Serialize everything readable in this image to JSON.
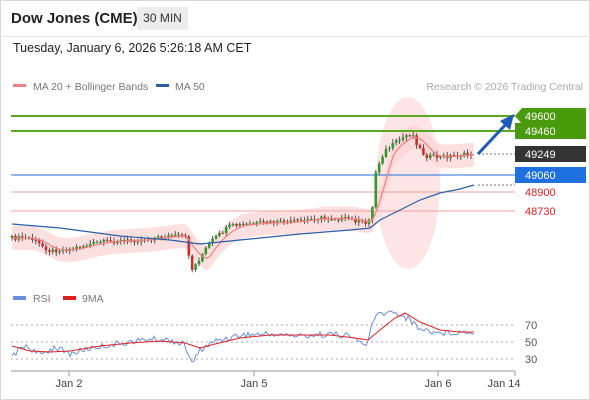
{
  "header": {
    "title": "Dow Jones (CME)",
    "timeframe": "30 MIN",
    "timestamp": "Tuesday, January 6, 2026 5:26:18 AM CET"
  },
  "legend": {
    "items": [
      {
        "label": "MA 20 + Bollinger Bands",
        "color": "#f08080"
      },
      {
        "label": "MA 50",
        "color": "#2a5fa8"
      }
    ],
    "credit": "Research © 2026 Trading Central"
  },
  "levels": [
    {
      "value": "49600",
      "kind": "resistance",
      "color": "#5aa81e"
    },
    {
      "value": "49460",
      "kind": "resistance",
      "color": "#5aa81e"
    },
    {
      "value": "49249",
      "kind": "last",
      "color": "#333333"
    },
    {
      "value": "49060",
      "kind": "pivot",
      "color": "#1e6fe0"
    },
    {
      "value": "48900",
      "kind": "support",
      "color": "#e84040"
    },
    {
      "value": "48730",
      "kind": "support",
      "color": "#e84040"
    }
  ],
  "osc_legend": [
    {
      "label": "RSI",
      "color": "#6a8fe0"
    },
    {
      "label": "9MA",
      "color": "#e02020"
    }
  ],
  "chart_data": [
    {
      "type": "candlestick",
      "title": "Dow Jones (CME)",
      "x_ticks": [
        "Jan 2",
        "Jan 5",
        "Jan 6",
        "Jan 14"
      ],
      "price_levels": [
        49600,
        49460,
        49249,
        49060,
        48900,
        48730
      ],
      "series": [
        {
          "name": "MA 20 + Bollinger Bands",
          "color": "#f08080"
        },
        {
          "name": "MA 50",
          "color": "#2a5fa8"
        }
      ]
    },
    {
      "type": "line",
      "series": [
        {
          "name": "RSI",
          "color": "#6a8fe0"
        },
        {
          "name": "9MA",
          "color": "#e02020"
        }
      ],
      "y_ticks": [
        70,
        50,
        30
      ]
    }
  ]
}
